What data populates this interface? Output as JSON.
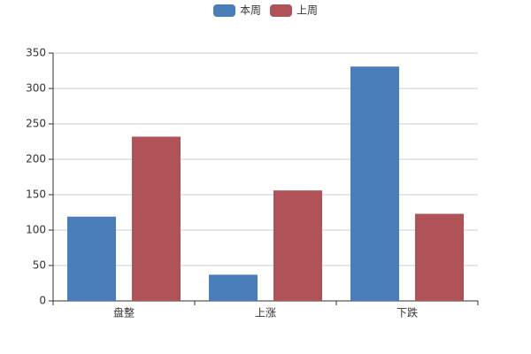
{
  "chart_data": {
    "type": "bar",
    "categories": [
      "盘整",
      "上涨",
      "下跌"
    ],
    "series": [
      {
        "name": "本周",
        "color": "#4a7ebb",
        "values": [
          119,
          37,
          331
        ]
      },
      {
        "name": "上周",
        "color": "#af5358",
        "values": [
          232,
          156,
          123
        ]
      }
    ],
    "ylim": [
      0,
      350
    ],
    "yticks": [
      0,
      50,
      100,
      150,
      200,
      250,
      300,
      350
    ],
    "grid": true,
    "legend": "top"
  }
}
